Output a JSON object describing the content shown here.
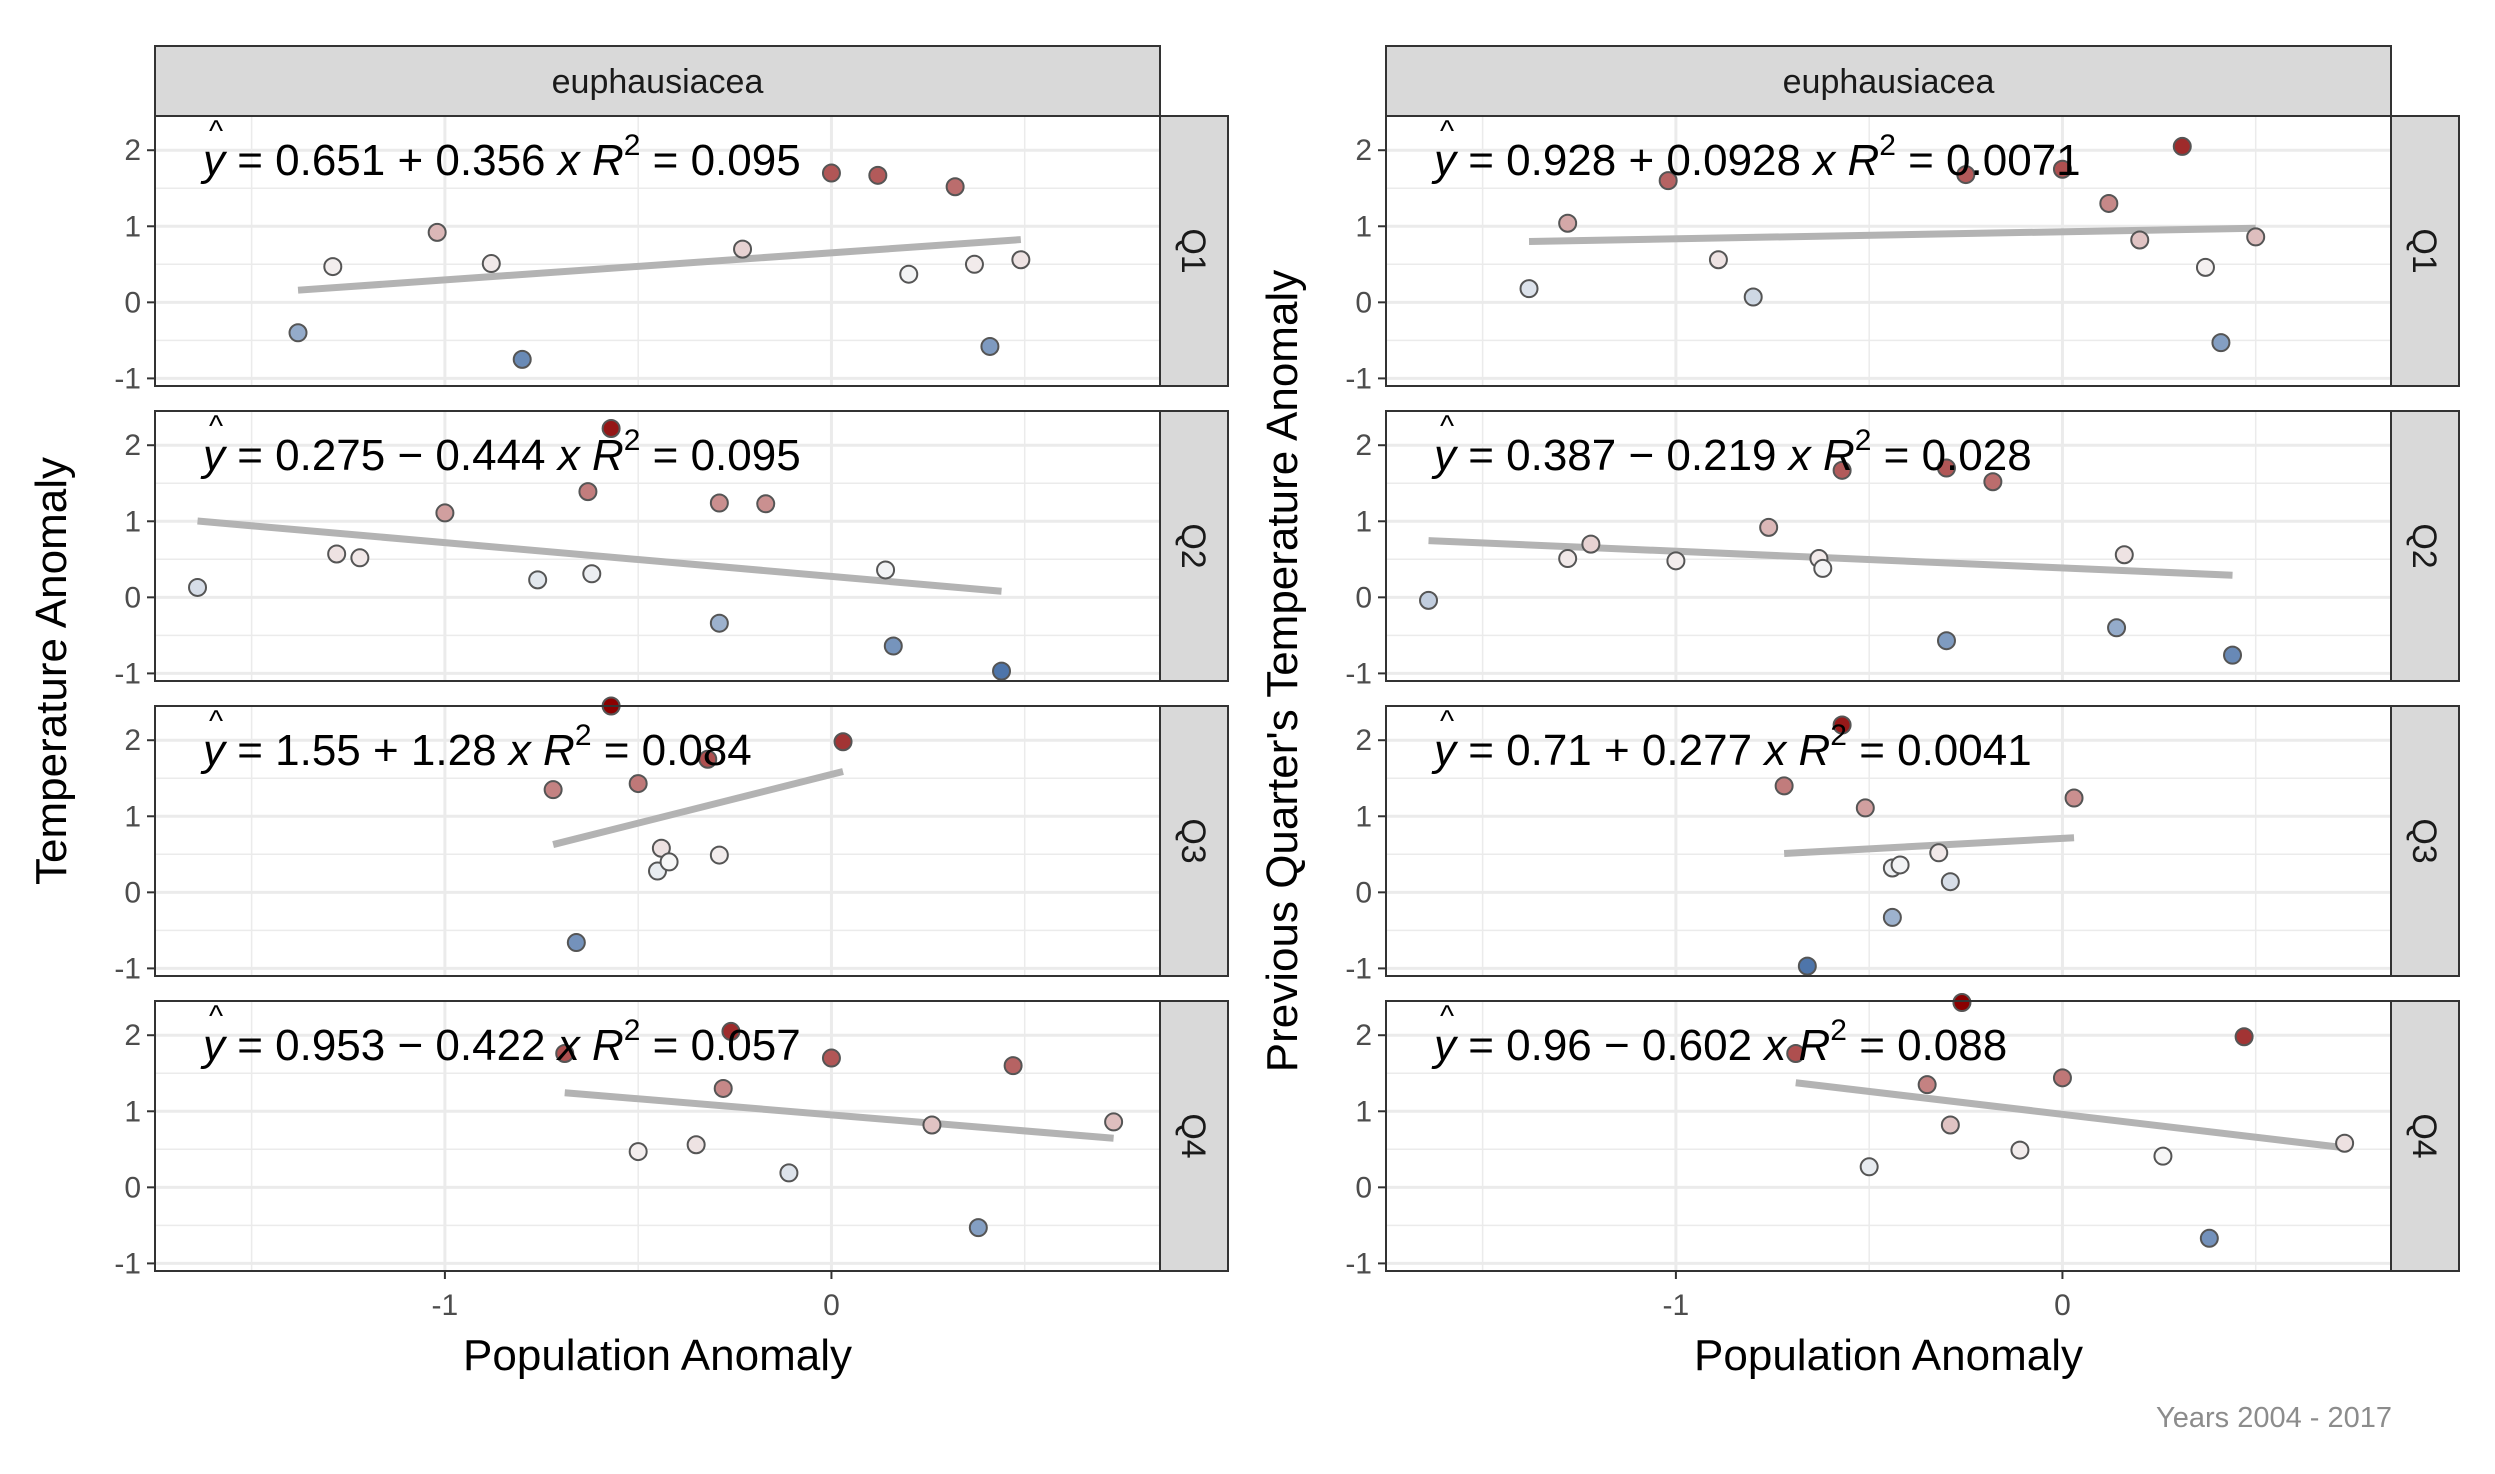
{
  "chart_data": {
    "type": "scatter",
    "caption": "Years 2004 - 2017",
    "xlabel": "Population Anomaly",
    "xlim": [
      -1.75,
      0.85
    ],
    "ylim": [
      -1.1,
      2.45
    ],
    "x_ticks": [
      -1,
      0
    ],
    "x_tick_labels": [
      "-1",
      "0"
    ],
    "y_ticks": [
      -1,
      0,
      1,
      2
    ],
    "y_tick_labels": [
      "-1",
      "0",
      "1",
      "2"
    ],
    "grid": true,
    "legend": "none",
    "color_scale": {
      "low": "#4a72a8",
      "mid": "#f7f7f7",
      "high": "#8b0000",
      "domain": [
        -1,
        2.4
      ]
    },
    "row_labels": [
      "Q1",
      "Q2",
      "Q3",
      "Q4"
    ],
    "panels": [
      {
        "strip": "euphausiacea",
        "ylabel": "Temperature Anomaly",
        "rows": [
          {
            "label": "Q1",
            "eq": {
              "intercept": "0.651",
              "op": "+",
              "slope": "0.356",
              "r2": "0.095"
            },
            "fit": {
              "intercept": 0.651,
              "slope": 0.356,
              "xrange": [
                -1.38,
                0.49
              ]
            },
            "points": [
              [
                -1.38,
                -0.4
              ],
              [
                -1.29,
                0.47
              ],
              [
                -1.02,
                0.92
              ],
              [
                -0.88,
                0.51
              ],
              [
                -0.8,
                -0.75
              ],
              [
                -0.23,
                0.7
              ],
              [
                0.0,
                1.7
              ],
              [
                0.12,
                1.67
              ],
              [
                0.2,
                0.37
              ],
              [
                0.32,
                1.52
              ],
              [
                0.37,
                0.5
              ],
              [
                0.41,
                -0.58
              ],
              [
                0.49,
                0.56
              ]
            ]
          },
          {
            "label": "Q2",
            "eq": {
              "intercept": "0.275",
              "op": "−",
              "slope": "0.444",
              "r2": "0.095"
            },
            "fit": {
              "intercept": 0.275,
              "slope": -0.444,
              "xrange": [
                -1.64,
                0.44
              ]
            },
            "points": [
              [
                -1.64,
                0.13
              ],
              [
                -1.28,
                0.57
              ],
              [
                -1.22,
                0.52
              ],
              [
                -1.0,
                1.11
              ],
              [
                -0.76,
                0.23
              ],
              [
                -0.57,
                2.22
              ],
              [
                -0.63,
                1.39
              ],
              [
                -0.62,
                0.31
              ],
              [
                -0.29,
                1.24
              ],
              [
                -0.29,
                -0.34
              ],
              [
                -0.17,
                1.23
              ],
              [
                0.14,
                0.36
              ],
              [
                0.16,
                -0.64
              ],
              [
                0.44,
                -0.97
              ]
            ]
          },
          {
            "label": "Q3",
            "eq": {
              "intercept": "1.55",
              "op": "+",
              "slope": "1.28",
              "r2": "0.084"
            },
            "fit": {
              "intercept": 1.55,
              "slope": 1.28,
              "xrange": [
                -0.72,
                0.03
              ]
            },
            "points": [
              [
                -0.72,
                1.35
              ],
              [
                -0.57,
                2.45
              ],
              [
                -0.66,
                -0.66
              ],
              [
                -0.5,
                1.43
              ],
              [
                -0.44,
                0.58
              ],
              [
                -0.45,
                0.28
              ],
              [
                -0.42,
                0.4
              ],
              [
                -0.32,
                1.75
              ],
              [
                -0.29,
                0.49
              ],
              [
                0.03,
                1.98
              ]
            ]
          },
          {
            "label": "Q4",
            "eq": {
              "intercept": "0.953",
              "op": "−",
              "slope": "0.422",
              "r2": "0.057"
            },
            "fit": {
              "intercept": 0.953,
              "slope": -0.422,
              "xrange": [
                -0.69,
                0.73
              ]
            },
            "points": [
              [
                -0.69,
                1.76
              ],
              [
                -0.5,
                0.47
              ],
              [
                -0.35,
                0.56
              ],
              [
                -0.28,
                1.3
              ],
              [
                -0.26,
                2.05
              ],
              [
                -0.11,
                0.19
              ],
              [
                0.0,
                1.7
              ],
              [
                0.26,
                0.82
              ],
              [
                0.38,
                -0.53
              ],
              [
                0.47,
                1.6
              ],
              [
                0.73,
                0.86
              ]
            ]
          }
        ]
      },
      {
        "strip": "euphausiacea",
        "ylabel": "Previous Quarter's Temperature Anomaly",
        "rows": [
          {
            "label": "Q1",
            "eq": {
              "intercept": "0.928",
              "op": "+",
              "slope": "0.0928",
              "r2": "0.0071"
            },
            "fit": {
              "intercept": 0.928,
              "slope": 0.0928,
              "xrange": [
                -1.38,
                0.5
              ]
            },
            "points": [
              [
                -1.38,
                0.18
              ],
              [
                -1.28,
                1.04
              ],
              [
                -1.02,
                1.6
              ],
              [
                -0.89,
                0.56
              ],
              [
                -0.8,
                0.07
              ],
              [
                -0.25,
                1.68
              ],
              [
                0.0,
                1.75
              ],
              [
                0.12,
                1.3
              ],
              [
                0.2,
                0.82
              ],
              [
                0.31,
                2.05
              ],
              [
                0.37,
                0.46
              ],
              [
                0.41,
                -0.53
              ],
              [
                0.5,
                0.86
              ]
            ]
          },
          {
            "label": "Q2",
            "eq": {
              "intercept": "0.387",
              "op": "−",
              "slope": "0.219",
              "r2": "0.028"
            },
            "fit": {
              "intercept": 0.387,
              "slope": -0.219,
              "xrange": [
                -1.64,
                0.44
              ]
            },
            "points": [
              [
                -1.64,
                -0.04
              ],
              [
                -1.28,
                0.51
              ],
              [
                -1.22,
                0.7
              ],
              [
                -1.0,
                0.48
              ],
              [
                -0.76,
                0.92
              ],
              [
                -0.63,
                0.51
              ],
              [
                -0.62,
                0.38
              ],
              [
                -0.57,
                1.67
              ],
              [
                -0.3,
                1.7
              ],
              [
                -0.3,
                -0.57
              ],
              [
                -0.18,
                1.52
              ],
              [
                0.14,
                -0.4
              ],
              [
                0.16,
                0.56
              ],
              [
                0.44,
                -0.76
              ]
            ]
          },
          {
            "label": "Q3",
            "eq": {
              "intercept": "0.71",
              "op": "+",
              "slope": "0.277",
              "r2": "0.0041"
            },
            "fit": {
              "intercept": 0.71,
              "slope": 0.277,
              "xrange": [
                -0.72,
                0.03
              ]
            },
            "points": [
              [
                -0.72,
                1.4
              ],
              [
                -0.57,
                2.2
              ],
              [
                -0.66,
                -0.97
              ],
              [
                -0.51,
                1.11
              ],
              [
                -0.44,
                0.32
              ],
              [
                -0.44,
                -0.33
              ],
              [
                -0.42,
                0.36
              ],
              [
                -0.32,
                0.52
              ],
              [
                -0.29,
                0.14
              ],
              [
                0.03,
                1.24
              ]
            ]
          },
          {
            "label": "Q4",
            "eq": {
              "intercept": "0.96",
              "op": "−",
              "slope": "0.602",
              "r2": "0.088"
            },
            "fit": {
              "intercept": 0.96,
              "slope": -0.602,
              "xrange": [
                -0.69,
                0.73
              ]
            },
            "points": [
              [
                -0.69,
                1.76
              ],
              [
                -0.5,
                0.27
              ],
              [
                -0.35,
                1.35
              ],
              [
                -0.29,
                0.82
              ],
              [
                -0.26,
                2.43
              ],
              [
                -0.11,
                0.49
              ],
              [
                0.0,
                1.44
              ],
              [
                0.26,
                0.41
              ],
              [
                0.38,
                -0.67
              ],
              [
                0.47,
                1.98
              ],
              [
                0.73,
                0.58
              ]
            ]
          }
        ]
      }
    ]
  }
}
